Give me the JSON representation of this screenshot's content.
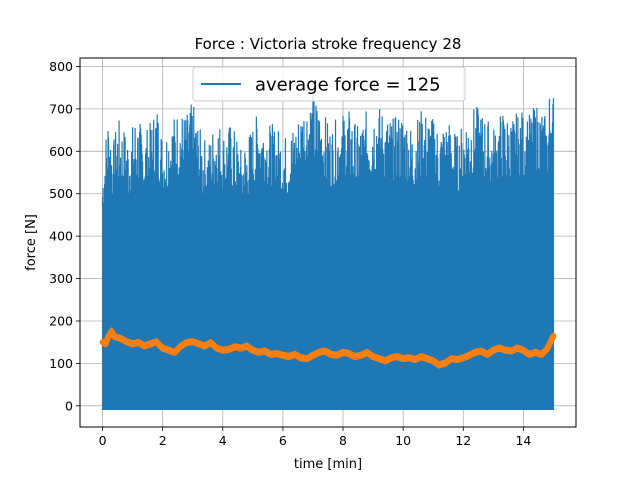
{
  "chart_data": {
    "type": "line",
    "title": "Force : Victoria stroke frequency 28",
    "xlabel": "time [min]",
    "ylabel": "force [N]",
    "xlim": [
      -0.75,
      15.75
    ],
    "ylim": [
      -50,
      820
    ],
    "xticks": [
      0,
      2,
      4,
      6,
      8,
      10,
      12,
      14
    ],
    "yticks": [
      0,
      100,
      200,
      300,
      400,
      500,
      600,
      700,
      800
    ],
    "grid": true,
    "legend_position": "top-center",
    "series": [
      {
        "name": "average force = 125",
        "color": "#1f77b4",
        "style": "dense oscillating force signal",
        "signal_floor": -10,
        "envelope_x": [
          0,
          0.1,
          0.2,
          0.35,
          0.5,
          0.7,
          0.9,
          1.1,
          1.4,
          1.6,
          1.8,
          2.0,
          2.2,
          2.5,
          2.8,
          3.0,
          3.2,
          3.5,
          3.8,
          4.0,
          4.3,
          4.6,
          4.9,
          5.2,
          5.5,
          5.8,
          6.1,
          6.4,
          6.7,
          7.0,
          7.3,
          7.6,
          7.9,
          8.2,
          8.5,
          8.8,
          9.1,
          9.4,
          9.7,
          10.0,
          10.3,
          10.6,
          10.9,
          11.2,
          11.5,
          11.8,
          12.1,
          12.4,
          12.7,
          13.0,
          13.3,
          13.6,
          13.9,
          14.2,
          14.5,
          14.8,
          14.9,
          15.0
        ],
        "envelope_max": [
          575,
          640,
          700,
          620,
          680,
          660,
          640,
          690,
          650,
          670,
          720,
          640,
          670,
          700,
          690,
          720,
          660,
          620,
          690,
          650,
          670,
          610,
          650,
          700,
          670,
          660,
          640,
          670,
          720,
          740,
          700,
          660,
          690,
          700,
          660,
          700,
          720,
          690,
          680,
          700,
          660,
          700,
          690,
          660,
          680,
          640,
          690,
          710,
          690,
          660,
          700,
          680,
          700,
          690,
          720,
          680,
          780,
          745
        ]
      },
      {
        "name": "",
        "color": "#ff7f0e",
        "style": "moving average",
        "x": [
          0,
          0.1,
          0.2,
          0.3,
          0.4,
          0.6,
          0.8,
          1.0,
          1.2,
          1.4,
          1.6,
          1.8,
          2.0,
          2.2,
          2.4,
          2.6,
          2.8,
          3.0,
          3.2,
          3.4,
          3.6,
          3.8,
          4.0,
          4.2,
          4.4,
          4.6,
          4.8,
          5.0,
          5.2,
          5.4,
          5.6,
          5.8,
          6.0,
          6.2,
          6.4,
          6.6,
          6.8,
          7.0,
          7.2,
          7.4,
          7.6,
          7.8,
          8.0,
          8.2,
          8.4,
          8.6,
          8.8,
          9.0,
          9.2,
          9.4,
          9.6,
          9.8,
          10.0,
          10.2,
          10.4,
          10.6,
          10.8,
          11.0,
          11.2,
          11.4,
          11.6,
          11.8,
          12.0,
          12.2,
          12.4,
          12.6,
          12.8,
          13.0,
          13.2,
          13.4,
          13.6,
          13.8,
          14.0,
          14.2,
          14.4,
          14.6,
          14.8,
          15.0
        ],
        "y": [
          150,
          145,
          165,
          175,
          162,
          158,
          150,
          145,
          148,
          140,
          145,
          150,
          135,
          130,
          125,
          140,
          148,
          150,
          145,
          140,
          148,
          135,
          130,
          132,
          138,
          135,
          140,
          130,
          125,
          128,
          120,
          122,
          118,
          115,
          120,
          112,
          110,
          118,
          125,
          128,
          120,
          118,
          125,
          122,
          115,
          118,
          125,
          115,
          110,
          105,
          112,
          115,
          110,
          112,
          108,
          115,
          110,
          105,
          95,
          100,
          110,
          108,
          112,
          118,
          125,
          128,
          120,
          130,
          135,
          130,
          128,
          135,
          130,
          120,
          125,
          120,
          135,
          165
        ]
      }
    ]
  }
}
